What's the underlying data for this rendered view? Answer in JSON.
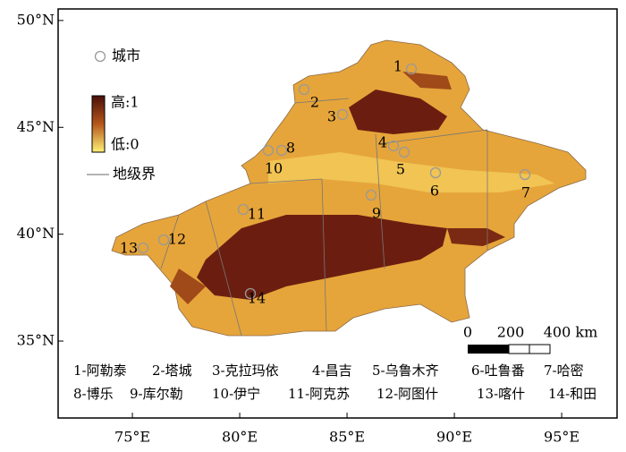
{
  "axes": {
    "xlim": [
      71.54,
      97.58
    ],
    "ylim": [
      31.4,
      50.54
    ],
    "xticks": [
      {
        "value": 75,
        "label": "75°E"
      },
      {
        "value": 80,
        "label": "80°E"
      },
      {
        "value": 85,
        "label": "85°E"
      },
      {
        "value": 90,
        "label": "90°E"
      },
      {
        "value": 95,
        "label": "95°E"
      }
    ],
    "yticks": [
      {
        "value": 50,
        "label": "50°N"
      },
      {
        "value": 45,
        "label": "45°N"
      },
      {
        "value": 40,
        "label": "40°N"
      },
      {
        "value": 35,
        "label": "35°N"
      }
    ]
  },
  "legend": {
    "city": "城市",
    "high": "高:1",
    "low": "低:0",
    "boundary": "地级界"
  },
  "scale_bar": {
    "labels": [
      "0",
      "200",
      "400 km"
    ]
  },
  "cities": [
    {
      "number": "1",
      "caption": "1-阿勒泰"
    },
    {
      "number": "2",
      "caption": "2-塔城"
    },
    {
      "number": "3",
      "caption": "3-克拉玛依"
    },
    {
      "number": "4",
      "caption": "4-昌吉"
    },
    {
      "number": "5",
      "caption": "5-乌鲁木齐"
    },
    {
      "number": "6",
      "caption": "6-吐鲁番"
    },
    {
      "number": "7",
      "caption": "7-哈密"
    },
    {
      "number": "8",
      "caption": "8-博乐"
    },
    {
      "number": "9",
      "caption": "9-库尔勒"
    },
    {
      "number": "10",
      "caption": "10-伊宁"
    },
    {
      "number": "11",
      "caption": "11-阿克苏"
    },
    {
      "number": "12",
      "caption": "12-阿图什"
    },
    {
      "number": "13",
      "caption": "13-喀什"
    },
    {
      "number": "14",
      "caption": "14-和田"
    }
  ]
}
